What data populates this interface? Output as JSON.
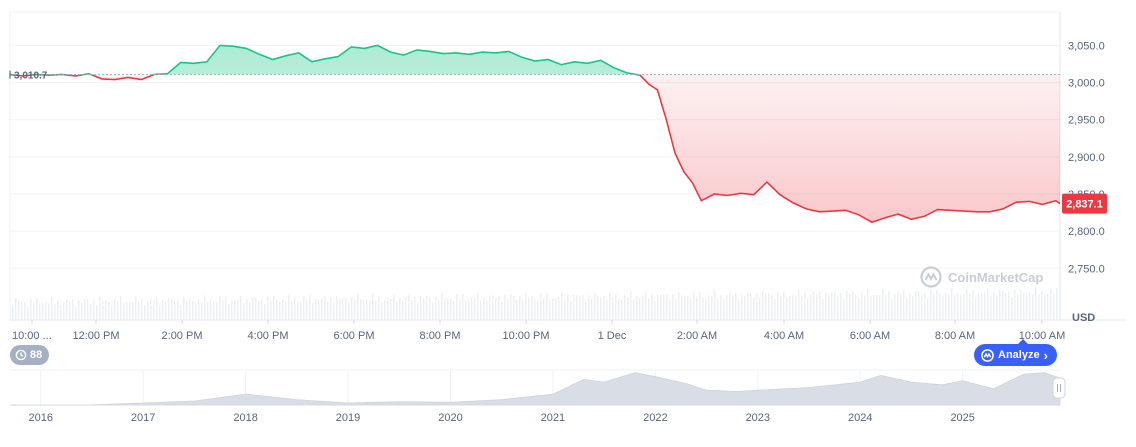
{
  "chart_data": {
    "type": "area",
    "title": "",
    "ylabel": "",
    "y_unit_label": "USD",
    "ylim": [
      2710,
      3095
    ],
    "yticks": [
      2750,
      2800,
      2850,
      2900,
      2950,
      3000,
      3050
    ],
    "ytick_labels": [
      "2,750.0",
      "2,800.0",
      "2,850.0",
      "2,900.0",
      "2,950.0",
      "3,000.0",
      "3,050.0"
    ],
    "baseline": {
      "value": 3010.7,
      "label": "3,010.7"
    },
    "last_price": {
      "value": 2837.1,
      "label": "2,837.1"
    },
    "x_time_labels": [
      "10:00 ...",
      "12:00 PM",
      "2:00 PM",
      "4:00 PM",
      "6:00 PM",
      "8:00 PM",
      "10:00 PM",
      "1 Dec",
      "2:00 AM",
      "4:00 AM",
      "6:00 AM",
      "8:00 AM",
      "10:00 AM"
    ],
    "x_hours": [
      0,
      24
    ],
    "series": [
      {
        "x": [
          0,
          0.3,
          0.6,
          0.9,
          1.2,
          1.5,
          1.8,
          2.1,
          2.4,
          2.7,
          3.0,
          3.3,
          3.6,
          3.9,
          4.2,
          4.5,
          4.8,
          5.1,
          5.4,
          5.7,
          6.0,
          6.3,
          6.6,
          6.9,
          7.2,
          7.5,
          7.8,
          8.1,
          8.4,
          8.7,
          9.0,
          9.3,
          9.6,
          9.9,
          10.2,
          10.5,
          10.8,
          11.1,
          11.4,
          11.7,
          12.0,
          12.3,
          12.6,
          12.9,
          13.2,
          13.5,
          13.8,
          14.1,
          14.4,
          14.6,
          14.8,
          15.0,
          15.2,
          15.4,
          15.6,
          15.8,
          16.1,
          16.4,
          16.7,
          17.0,
          17.3,
          17.6,
          17.9,
          18.2,
          18.5,
          18.8,
          19.1,
          19.4,
          19.7,
          20.0,
          20.3,
          20.6,
          20.9,
          21.2,
          21.5,
          21.8,
          22.1,
          22.4,
          22.7,
          23.0,
          23.3,
          23.6,
          23.9,
          24.0
        ],
        "y": [
          3010.7,
          3009,
          3011,
          3010,
          3011,
          3009,
          3012,
          3005,
          3004,
          3007,
          3004,
          3011,
          3012,
          3027,
          3026,
          3028,
          3050,
          3049,
          3046,
          3038,
          3031,
          3036,
          3040,
          3028,
          3032,
          3035,
          3048,
          3046,
          3050,
          3041,
          3037,
          3044,
          3042,
          3039,
          3040,
          3038,
          3041,
          3040,
          3042,
          3034,
          3029,
          3031,
          3024,
          3028,
          3026,
          3030,
          3020,
          3013,
          3010,
          2998,
          2990,
          2950,
          2905,
          2880,
          2865,
          2841,
          2850,
          2848,
          2851,
          2849,
          2866,
          2849,
          2838,
          2830,
          2826,
          2827,
          2828,
          2822,
          2812,
          2818,
          2823,
          2816,
          2820,
          2829,
          2828,
          2827,
          2826,
          2826,
          2830,
          2839,
          2840,
          2836,
          2841,
          2837.1
        ]
      }
    ],
    "brush_years": [
      "2016",
      "2017",
      "2018",
      "2019",
      "2020",
      "2021",
      "2022",
      "2023",
      "2024",
      "2025"
    ],
    "brush_range": [
      2015.7,
      2025.95
    ],
    "brush_years_x": [
      2016,
      2017,
      2018,
      2019,
      2020,
      2021,
      2022,
      2023,
      2024,
      2025
    ],
    "brush_series": {
      "x": [
        2015.7,
        2016.0,
        2016.5,
        2017.0,
        2017.5,
        2018.0,
        2018.5,
        2019.0,
        2019.5,
        2020.0,
        2020.5,
        2021.0,
        2021.3,
        2021.5,
        2021.8,
        2022.0,
        2022.3,
        2022.5,
        2022.8,
        2023.0,
        2023.5,
        2024.0,
        2024.2,
        2024.5,
        2024.8,
        2025.0,
        2025.3,
        2025.6,
        2025.8,
        2025.95
      ],
      "y": [
        0,
        0,
        1,
        15,
        30,
        80,
        40,
        15,
        25,
        20,
        40,
        80,
        190,
        170,
        240,
        210,
        160,
        110,
        100,
        110,
        130,
        170,
        220,
        170,
        150,
        180,
        120,
        230,
        240,
        200
      ]
    },
    "colors": {
      "up": "#16c784",
      "down": "#ea3943",
      "baseline": "#a6b0c3",
      "brush": "#d9dde5"
    }
  },
  "ui": {
    "badge_count": "88",
    "analyze_label": "Analyze",
    "analyze_chevron": "›",
    "watermark": "CoinMarketCap"
  }
}
